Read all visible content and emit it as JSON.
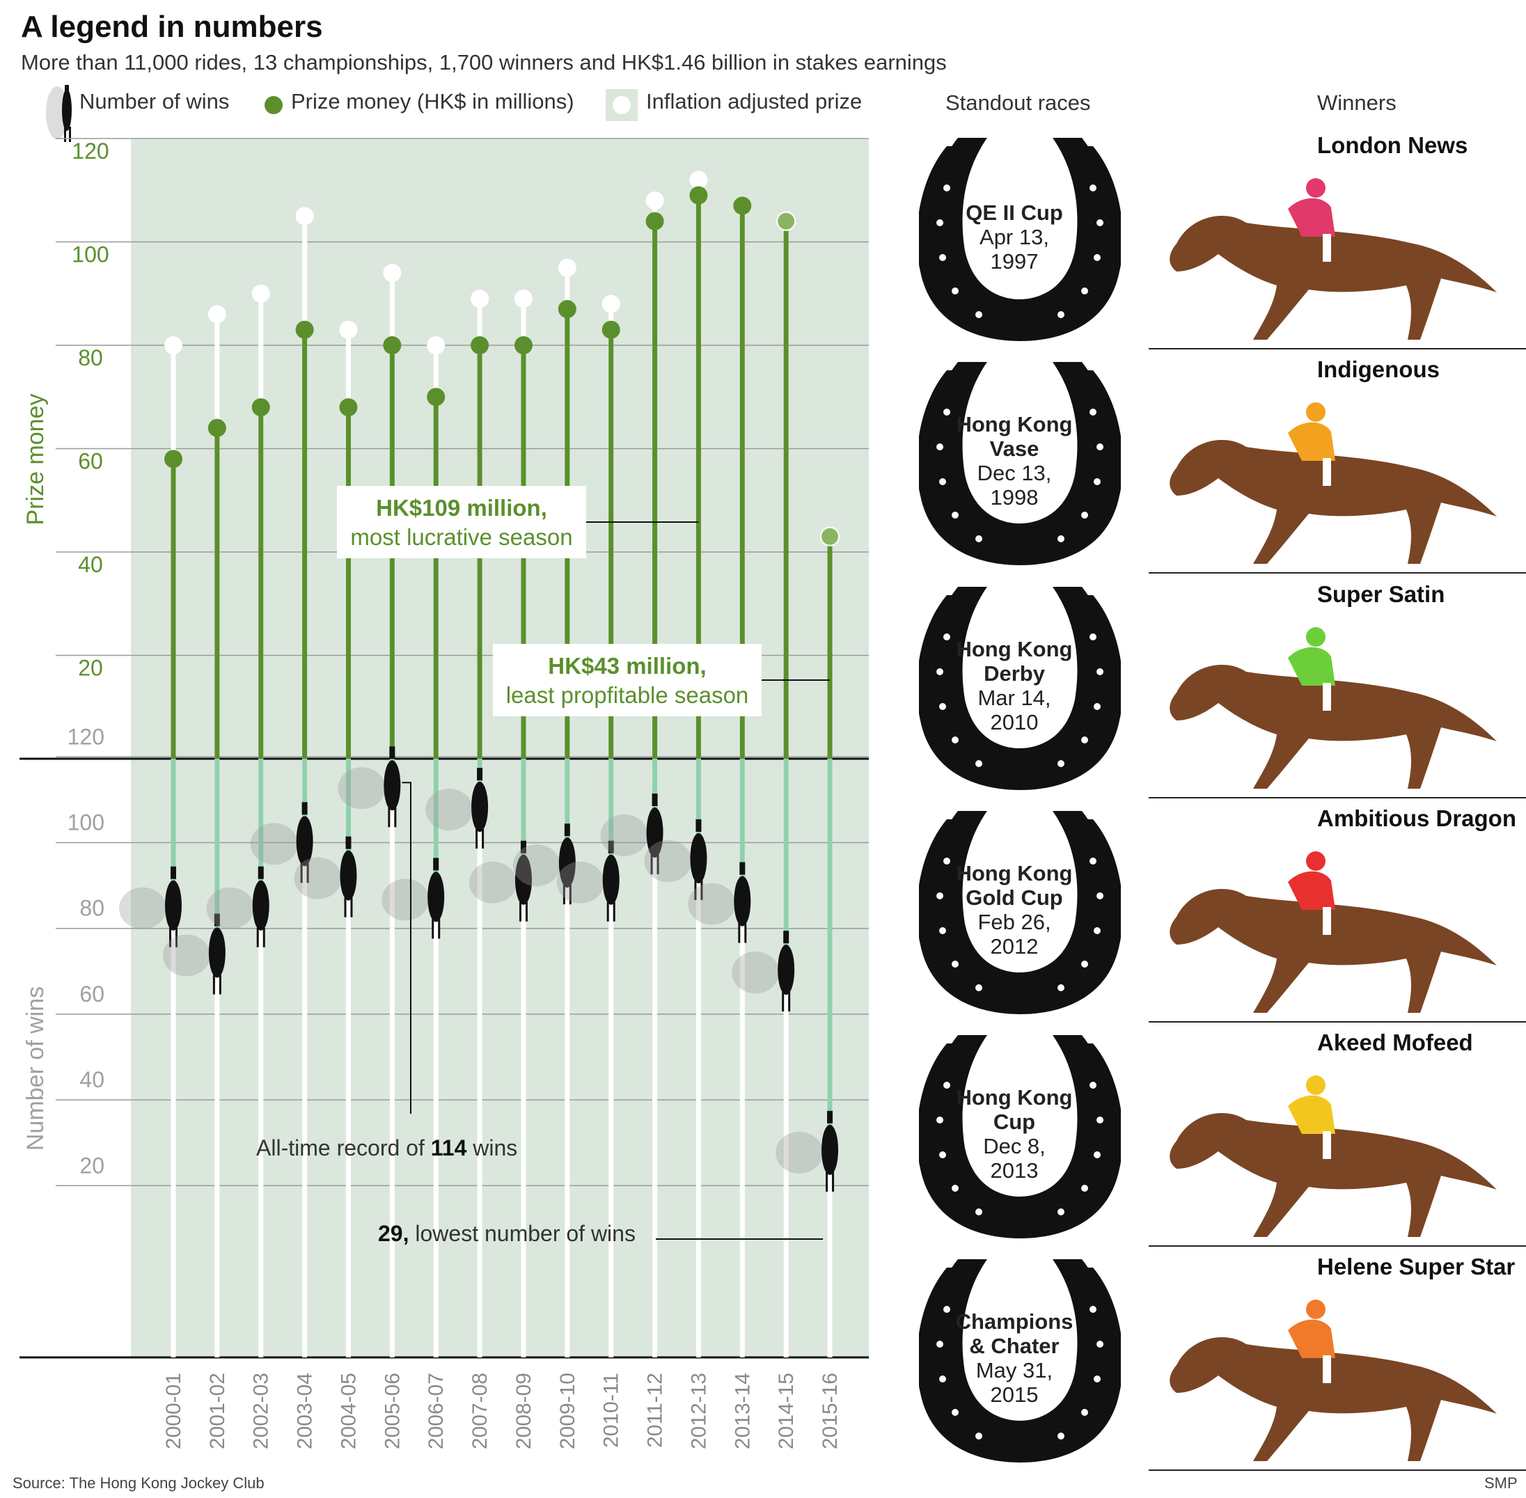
{
  "title": "A legend in numbers",
  "subtitle": "More than 11,000 rides, 13 championships, 1,700 winners and HK$1.46 billion in stakes earnings",
  "legend": {
    "wins": "Number of wins",
    "prize": "Prize money (HK$ in millions)",
    "inflation": "Inflation adjusted prize"
  },
  "columns": {
    "races": "Standout races",
    "winners": "Winners"
  },
  "colors": {
    "prize": "#5b8f2c",
    "inflation": "#ffffff",
    "panel": "#dbe7dd",
    "wins_line": "#8fd1ac"
  },
  "chart_data": {
    "type": "line",
    "categories": [
      "2000-01",
      "2001-02",
      "2002-03",
      "2003-04",
      "2004-05",
      "2005-06",
      "2006-07",
      "2007-08",
      "2008-09",
      "2009-10",
      "2010-11",
      "2011-12",
      "2012-13",
      "2013-14",
      "2014-15",
      "2015-16"
    ],
    "prize": {
      "ylabel": "Prize money",
      "ylim": [
        0,
        120
      ],
      "ticks": [
        "20",
        "40",
        "60",
        "80",
        "100",
        "120"
      ],
      "tick_values": [
        20,
        40,
        60,
        80,
        100,
        120
      ],
      "series": [
        {
          "name": "Prize money (HK$ in millions)",
          "values": [
            58,
            64,
            68,
            83,
            68,
            80,
            70,
            80,
            80,
            87,
            83,
            104,
            109,
            107,
            104,
            43
          ]
        },
        {
          "name": "Inflation adjusted prize",
          "values": [
            80,
            86,
            90,
            105,
            83,
            94,
            80,
            89,
            89,
            95,
            88,
            108,
            112,
            107,
            104,
            43
          ]
        }
      ]
    },
    "wins": {
      "ylabel": "Number of wins",
      "ticks": [
        "20",
        "40",
        "60",
        "80",
        "100",
        "120"
      ],
      "tick_values": [
        20,
        40,
        60,
        80,
        100,
        120
      ],
      "series": [
        {
          "name": "Number of wins",
          "values": [
            86,
            75,
            86,
            101,
            93,
            114,
            88,
            109,
            92,
            96,
            92,
            103,
            97,
            87,
            71,
            29
          ]
        }
      ]
    },
    "annotations": {
      "best_season_value": "HK$109 million,",
      "best_season_text": "most lucrative season",
      "worst_season_value": "HK$43 million,",
      "worst_season_text": "least propfitable season",
      "record_prefix": "All-time record of ",
      "record_value": "114",
      "record_suffix": " wins",
      "lowest_value": "29,",
      "lowest_text": " lowest number of wins"
    }
  },
  "races": [
    {
      "race": "QE II Cup",
      "date": [
        "Apr 13,",
        "1997"
      ],
      "winner": "London News"
    },
    {
      "race": "Hong Kong Vase",
      "date": [
        "Dec 13,",
        "1998"
      ],
      "winner": "Indigenous"
    },
    {
      "race": "Hong Kong Derby",
      "date": [
        "Mar 14,",
        "2010"
      ],
      "winner": "Super Satin"
    },
    {
      "race": "Hong Kong Gold Cup",
      "date": [
        "Feb 26,",
        "2012"
      ],
      "winner": "Ambitious Dragon"
    },
    {
      "race": "Hong Kong Cup",
      "date": [
        "Dec 8,",
        "2013"
      ],
      "winner": "Akeed Mofeed"
    },
    {
      "race": "Champions & Chater",
      "date": [
        "May 31,",
        "2015"
      ],
      "winner": "Helene Super Star"
    }
  ],
  "race_lines": [
    [
      "QE II Cup"
    ],
    [
      "Hong Kong",
      "Vase"
    ],
    [
      "Hong Kong",
      "Derby"
    ],
    [
      "Hong Kong",
      "Gold Cup"
    ],
    [
      "Hong Kong",
      "Cup"
    ],
    [
      "Champions",
      "& Chater"
    ]
  ],
  "footer": {
    "source": "Source: The Hong Kong Jockey Club",
    "credit": "SMP"
  }
}
